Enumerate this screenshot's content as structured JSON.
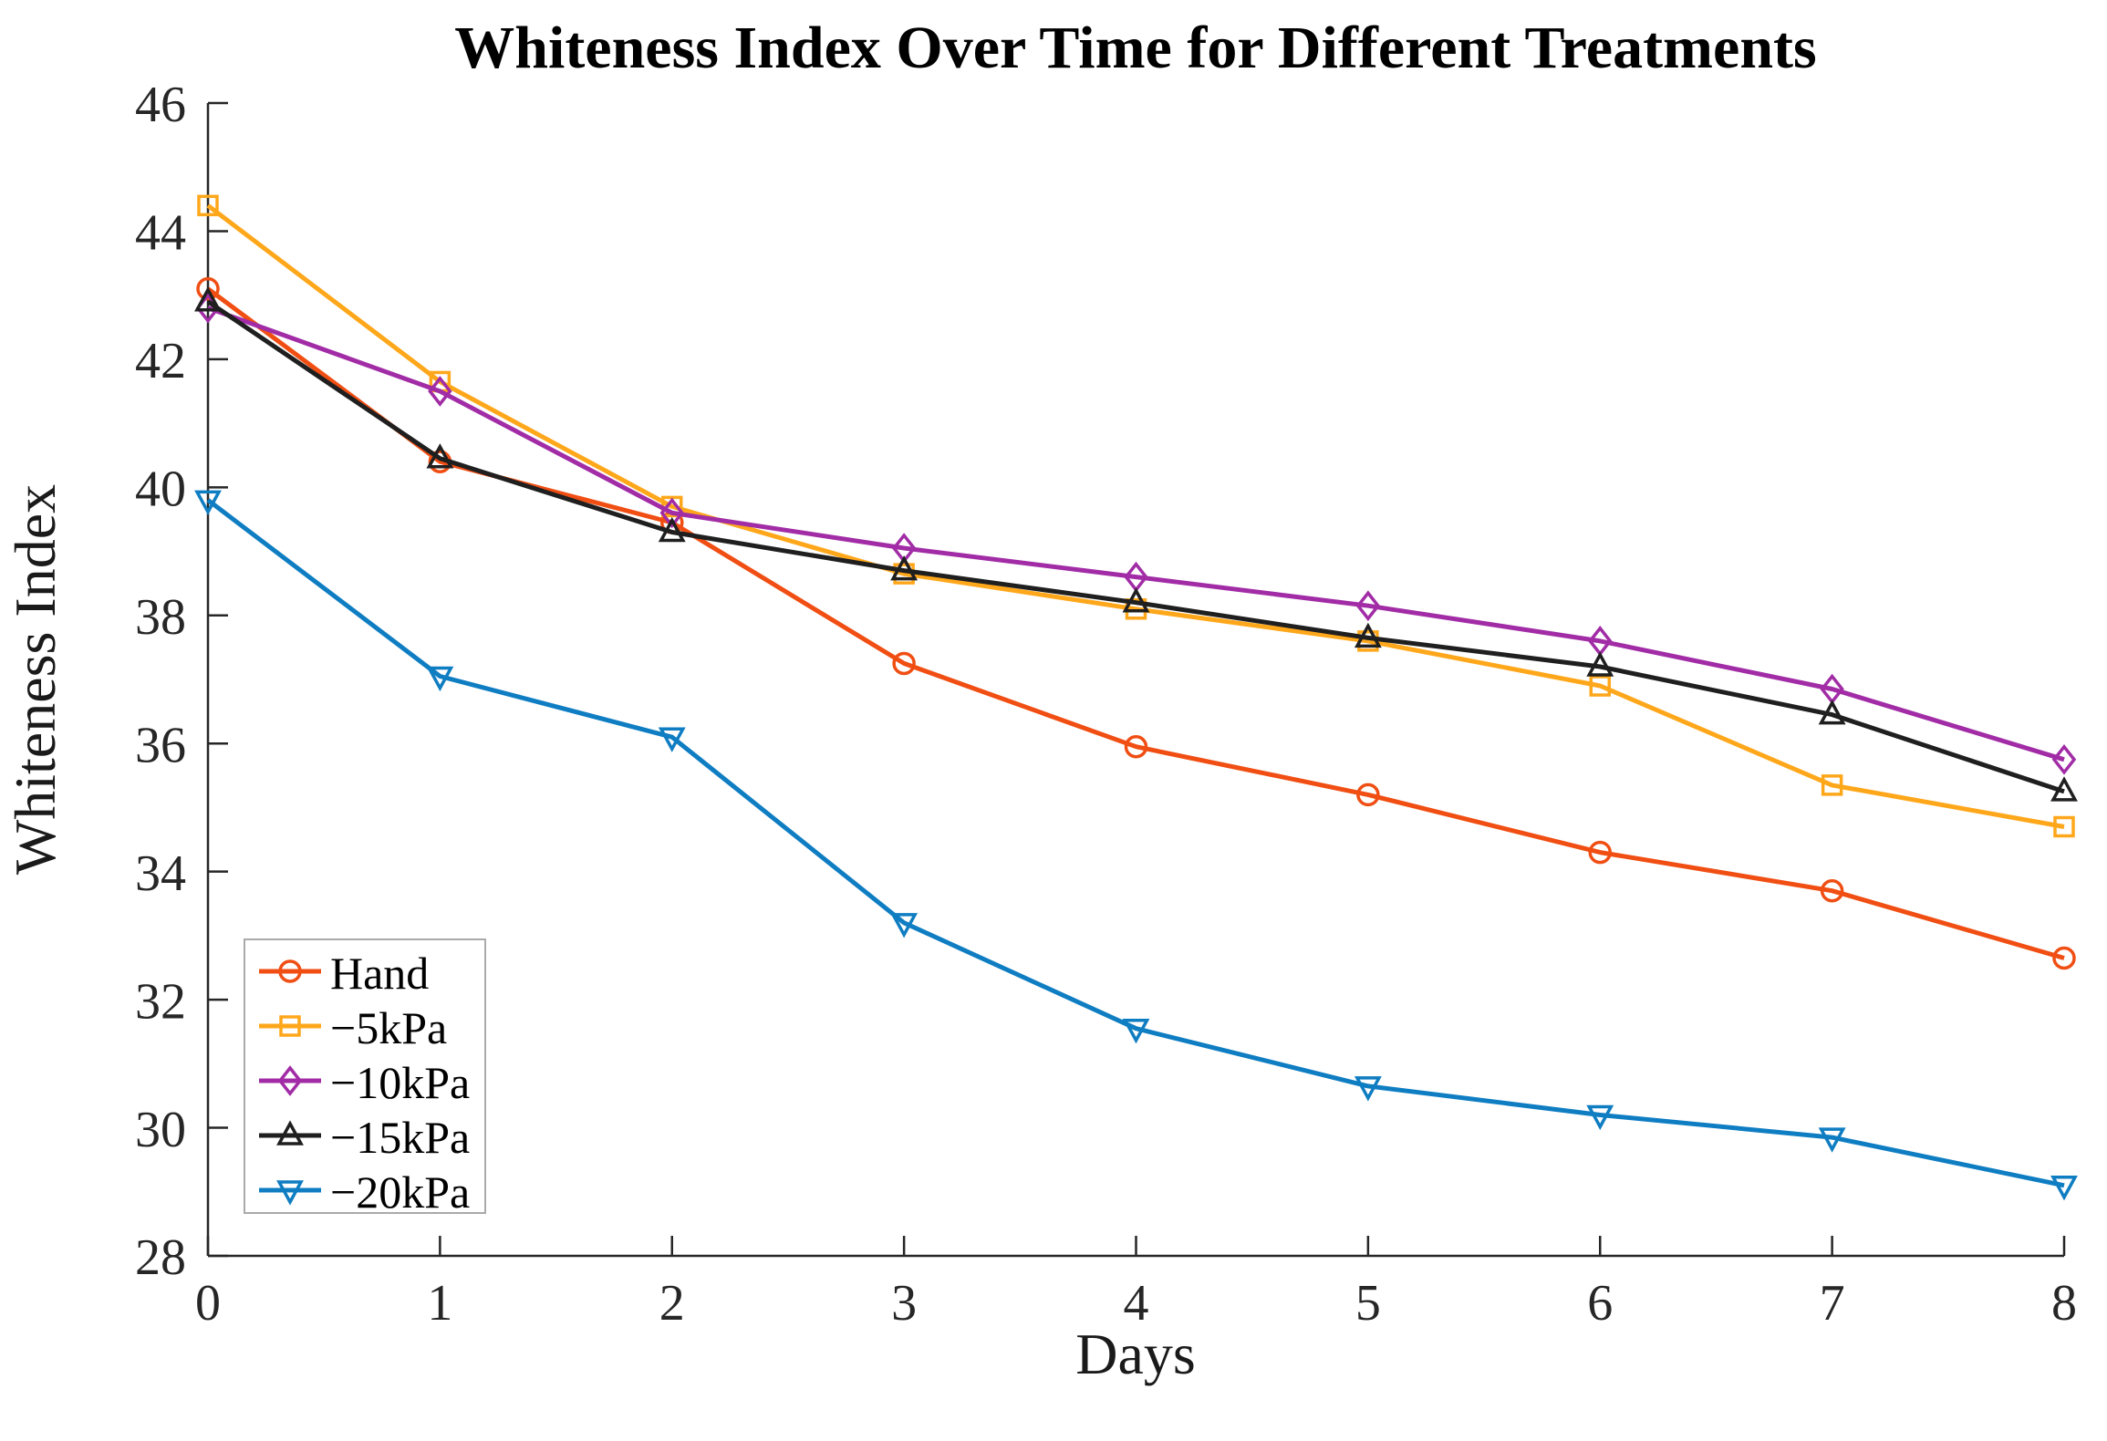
{
  "chart_data": {
    "type": "line",
    "title": "Whiteness Index Over Time for Different Treatments",
    "xlabel": "Days",
    "ylabel": "Whiteness Index",
    "x": [
      0,
      1,
      2,
      3,
      4,
      5,
      6,
      7,
      8
    ],
    "xlim": [
      0,
      8
    ],
    "ylim": [
      28,
      46
    ],
    "xticks": [
      0,
      1,
      2,
      3,
      4,
      5,
      6,
      7,
      8
    ],
    "yticks": [
      28,
      30,
      32,
      34,
      36,
      38,
      40,
      42,
      44,
      46
    ],
    "grid": false,
    "legend_position": "lower-left",
    "axis_color": "#262626",
    "series": [
      {
        "name": "Hand",
        "marker": "circle",
        "color": "#F04E13",
        "values": [
          43.1,
          40.4,
          39.45,
          37.25,
          35.95,
          35.2,
          34.3,
          33.7,
          32.65
        ]
      },
      {
        "name": "−5kPa",
        "marker": "square",
        "color": "#FFA71B",
        "values": [
          44.4,
          41.65,
          39.7,
          38.65,
          38.1,
          37.6,
          36.9,
          35.35,
          34.7
        ]
      },
      {
        "name": "−10kPa",
        "marker": "diamond",
        "color": "#A12CA6",
        "values": [
          42.8,
          41.5,
          39.6,
          39.05,
          38.6,
          38.15,
          37.6,
          36.85,
          35.75
        ]
      },
      {
        "name": "−15kPa",
        "marker": "triangle-up",
        "color": "#1F1F1F",
        "values": [
          42.9,
          40.45,
          39.3,
          38.7,
          38.2,
          37.65,
          37.2,
          36.45,
          35.25
        ]
      },
      {
        "name": "−20kPa",
        "marker": "triangle-down",
        "color": "#0F7DC2",
        "values": [
          39.8,
          37.05,
          36.1,
          33.2,
          31.55,
          30.65,
          30.2,
          29.85,
          29.1
        ]
      }
    ]
  }
}
